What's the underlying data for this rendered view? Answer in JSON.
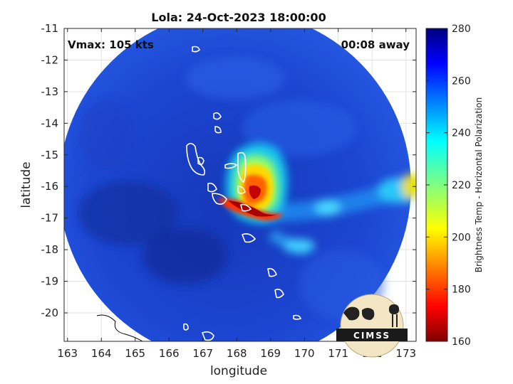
{
  "chart_data": {
    "type": "heatmap",
    "title": "Lola: 24-Oct-2023 18:00:00",
    "annotations": {
      "vmax": "Vmax: 105 kts",
      "time_offset": "00:08 away"
    },
    "xlabel": "longitude",
    "ylabel": "latitude",
    "xlim": [
      162.9,
      173.3
    ],
    "ylim": [
      -20.9,
      -11.0
    ],
    "xticks": [
      163,
      164,
      165,
      166,
      167,
      168,
      169,
      170,
      171,
      172,
      173
    ],
    "yticks": [
      -11,
      -12,
      -13,
      -14,
      -15,
      -16,
      -17,
      -18,
      -19,
      -20
    ],
    "grid": true,
    "colorbar": {
      "label": "Brightness Temp - Horizontal Polarization",
      "range": [
        160,
        280
      ],
      "ticks": [
        280,
        260,
        240,
        220,
        200,
        180,
        160
      ],
      "colormap": "jet"
    },
    "swath": {
      "center": [
        167.95,
        -16.0
      ],
      "radius_deg": 5.2,
      "background_value": 262
    },
    "features": [
      {
        "name": "eyewall",
        "lon": 168.3,
        "lat": -16.2,
        "min_value": 170
      },
      {
        "name": "rainband-east",
        "lon": 170.5,
        "lat": -16.6,
        "min_value": 235
      },
      {
        "name": "cell-far-east",
        "lon": 173.0,
        "lat": -16.1,
        "min_value": 205
      }
    ],
    "logo": "CIMSS",
    "colors": {
      "swath_base": "#1b3fc8",
      "coastline": "#ffffff",
      "eyewall": "#d10000"
    }
  }
}
